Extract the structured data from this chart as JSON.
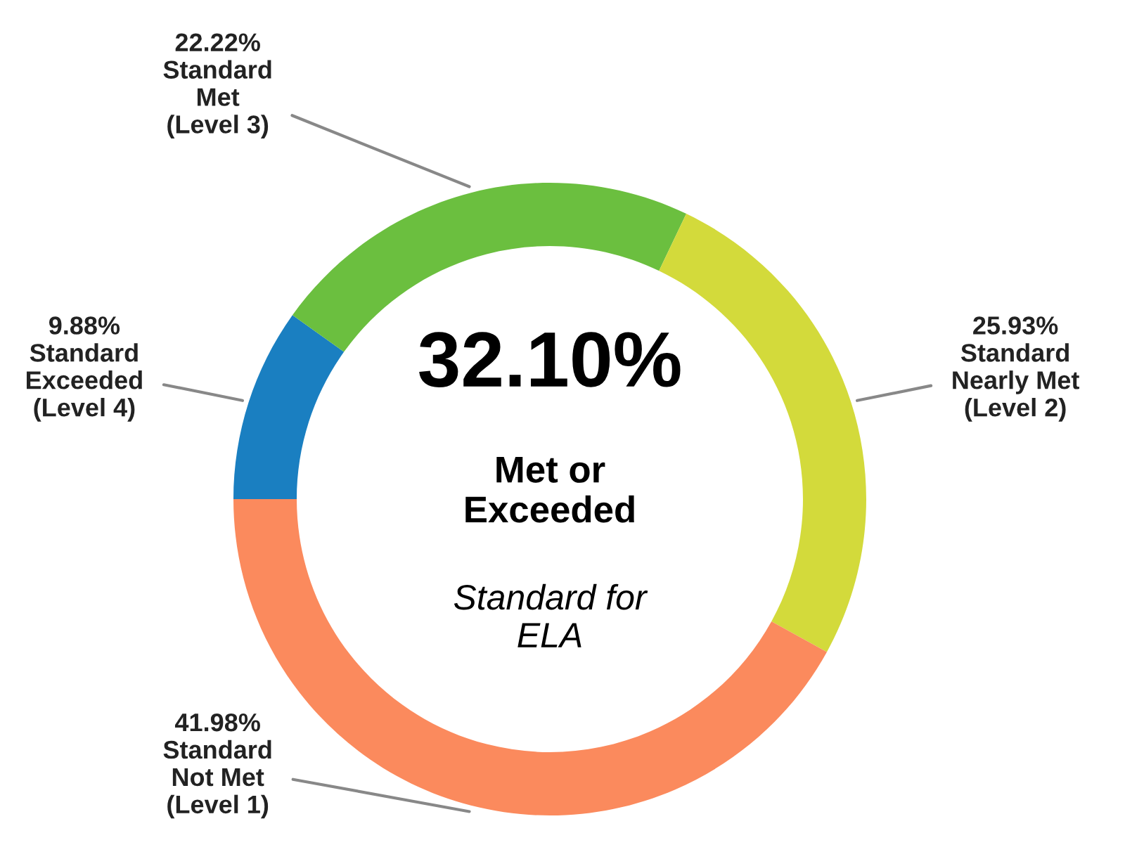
{
  "chart_data": {
    "type": "donut",
    "categories": [
      "Standard\nExceeded\n(Level 4)",
      "Standard\nMet\n(Level 3)",
      "Standard\nNearly Met\n(Level 2)",
      "Standard\nNot Met\n(Level 1)"
    ],
    "values": [
      9.88,
      22.22,
      25.93,
      41.98
    ],
    "value_labels": [
      "9.88%",
      "22.22%",
      "25.93%",
      "41.98%"
    ],
    "colors": [
      "#1a7fc1",
      "#6bbf3f",
      "#d3da3b",
      "#fb8a5d"
    ],
    "annotations": [
      "32.10%",
      "Met or\nExceeded",
      "Standard for\nELA"
    ],
    "legend": false
  }
}
